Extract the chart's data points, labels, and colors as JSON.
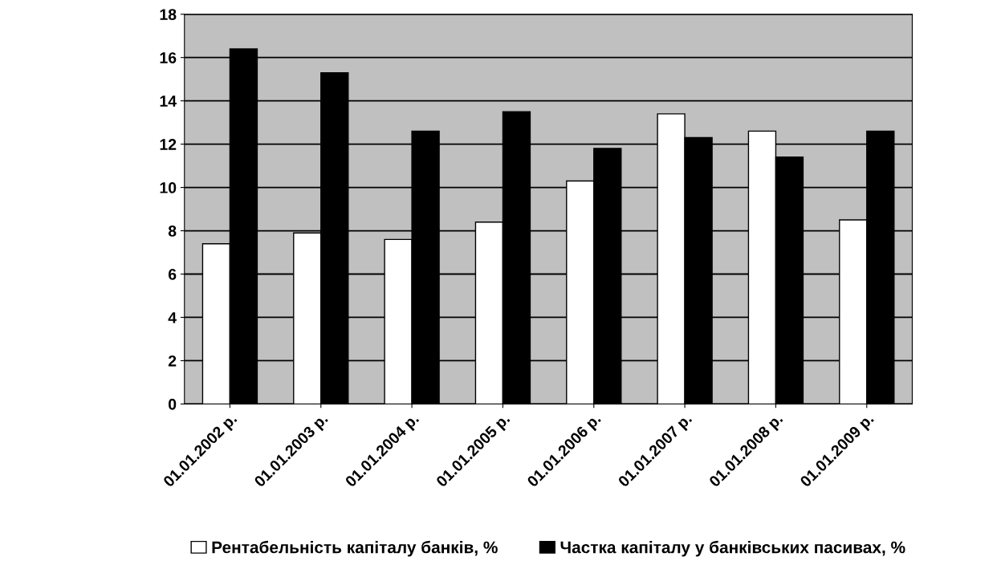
{
  "chart_data": {
    "type": "bar",
    "categories": [
      "01.01.2002 р.",
      "01.01.2003 р.",
      "01.01.2004 р.",
      "01.01.2005 р.",
      "01.01.2006 р.",
      "01.01.2007 р.",
      "01.01.2008 р.",
      "01.01.2009 р."
    ],
    "series": [
      {
        "name": "Рентабельність капіталу банків, %",
        "color": "#ffffff",
        "values": [
          7.4,
          7.9,
          7.6,
          8.4,
          10.3,
          13.4,
          12.6,
          8.5
        ]
      },
      {
        "name": "Частка капіталу у банківських пасивах, %",
        "color": "#000000",
        "values": [
          16.4,
          15.3,
          12.6,
          13.5,
          11.8,
          12.3,
          11.4,
          12.6
        ]
      }
    ],
    "ylim": [
      0,
      18
    ],
    "yticks": [
      0,
      2,
      4,
      6,
      8,
      10,
      12,
      14,
      16,
      18
    ],
    "grid": "y",
    "legend": "bottom"
  }
}
